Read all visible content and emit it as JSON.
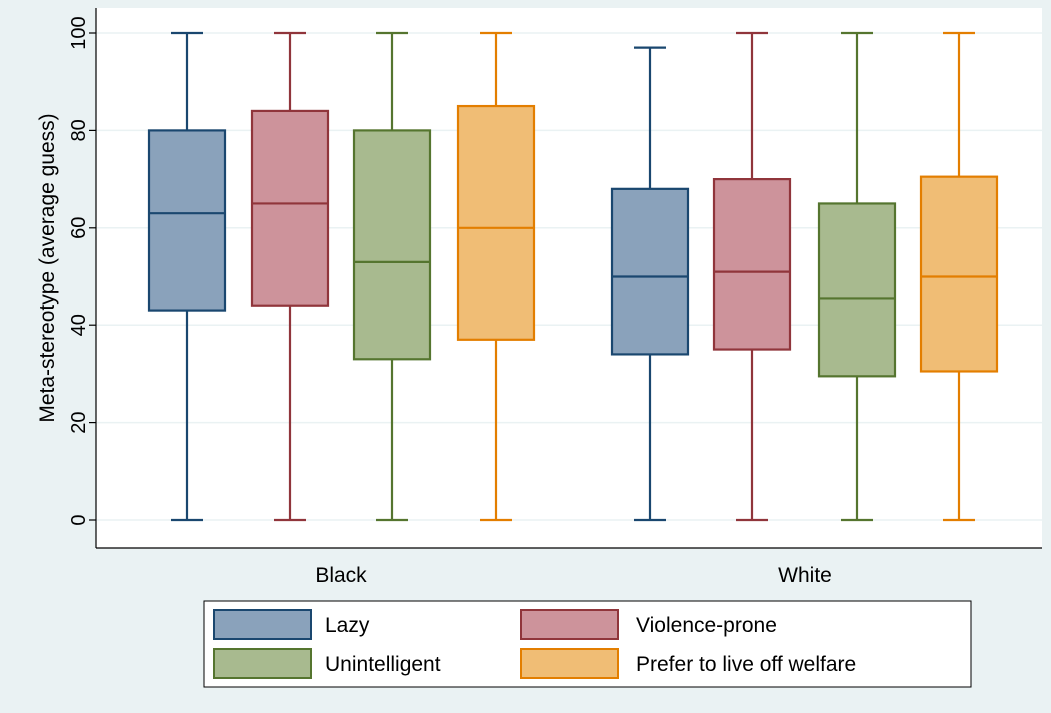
{
  "chart_data": {
    "type": "box",
    "ylabel": "Meta-stereotype (average guess)",
    "xlabel": "",
    "ylim": [
      0,
      100
    ],
    "yticks": [
      0,
      20,
      40,
      60,
      80,
      100
    ],
    "grid": true,
    "legend_position": "bottom",
    "categories": [
      "Black",
      "White"
    ],
    "series": [
      {
        "name": "Lazy",
        "fill": "#8aa2bb",
        "stroke": "#1a476f",
        "boxes": [
          {
            "min": 0,
            "q1": 43,
            "median": 63,
            "q3": 80,
            "max": 100
          },
          {
            "min": 0,
            "q1": 34,
            "median": 50,
            "q3": 68,
            "max": 97
          }
        ]
      },
      {
        "name": "Violence-prone",
        "fill": "#cd939b",
        "stroke": "#90353b",
        "boxes": [
          {
            "min": 0,
            "q1": 44,
            "median": 65,
            "q3": 84,
            "max": 100
          },
          {
            "min": 0,
            "q1": 35,
            "median": 51,
            "q3": 70,
            "max": 100
          }
        ]
      },
      {
        "name": "Unintelligent",
        "fill": "#a8ba8f",
        "stroke": "#55752f",
        "boxes": [
          {
            "min": 0,
            "q1": 33,
            "median": 53,
            "q3": 80,
            "max": 100
          },
          {
            "min": 0,
            "q1": 29.5,
            "median": 45.5,
            "q3": 65,
            "max": 100
          }
        ]
      },
      {
        "name": "Prefer to live off welfare",
        "fill": "#f0bd75",
        "stroke": "#e37e00",
        "boxes": [
          {
            "min": 0,
            "q1": 37,
            "median": 60,
            "q3": 85,
            "max": 100
          },
          {
            "min": 0,
            "q1": 30.5,
            "median": 50,
            "q3": 70.5,
            "max": 100
          }
        ]
      }
    ]
  }
}
